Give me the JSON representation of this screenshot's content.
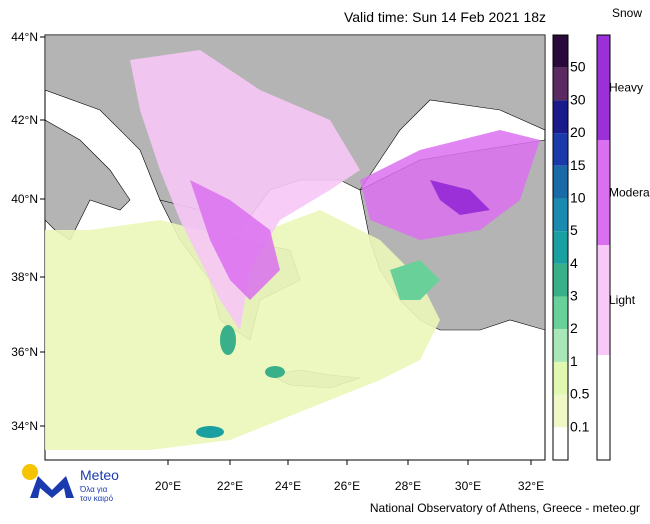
{
  "header": {
    "title": "Valid time: Sun 14 Feb 2021 18z"
  },
  "map": {
    "lat_labels": [
      "44°N",
      "42°N",
      "40°N",
      "38°N",
      "36°N",
      "34°N"
    ],
    "lon_labels": [
      "20°E",
      "22°E",
      "24°E",
      "26°E",
      "28°E",
      "30°E",
      "32°E"
    ]
  },
  "rain_scale": {
    "labels": [
      "50",
      "30",
      "20",
      "15",
      "10",
      "5",
      "4",
      "3",
      "2",
      "1",
      "0.5",
      "0.1"
    ],
    "colors": [
      "#2a0a3a",
      "#5a2a60",
      "#1a1a8a",
      "#1a3aaa",
      "#1a6aa8",
      "#1a8ab0",
      "#1aa0a0",
      "#3ab08a",
      "#6ad09a",
      "#a8e8b8",
      "#e0f8b0",
      "#f0f8c8",
      "#ffffff"
    ]
  },
  "snow_scale": {
    "title": "Snow",
    "labels": [
      "Heavy",
      "Moderate",
      "Light"
    ],
    "colors": [
      "#9b30d9",
      "#da70f0",
      "#f8c8f8",
      "#ffffff"
    ]
  },
  "footer": {
    "credit": "National Observatory of Athens, Greece - meteo.gr"
  },
  "logo": {
    "name": "Meteo",
    "tagline_1": "Όλα για",
    "tagline_2": "τον καιρό"
  }
}
